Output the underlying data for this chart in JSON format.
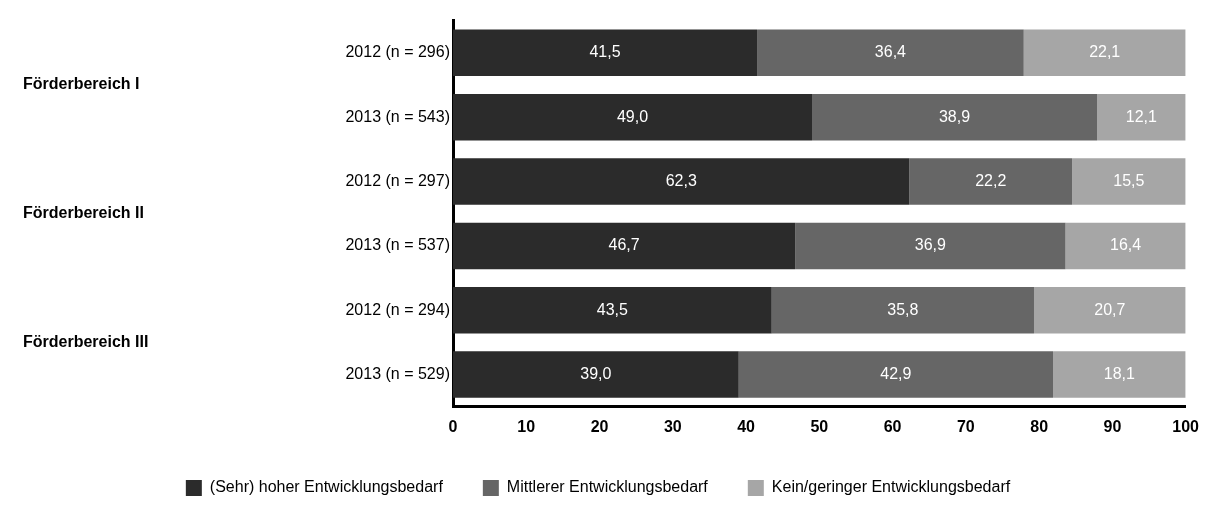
{
  "chart_data": {
    "type": "bar",
    "orientation": "horizontal",
    "stacked": true,
    "categories": [
      "2012 (n = 296)",
      "2013 (n = 543)",
      "2012 (n = 297)",
      "2013 (n = 537)",
      "2012 (n = 294)",
      "2013 (n = 529)"
    ],
    "series": [
      {
        "name": "(Sehr) hoher Entwicklungsbedarf",
        "color": "#2b2b2b",
        "values": [
          41.5,
          49.0,
          62.3,
          46.7,
          43.5,
          39.0
        ]
      },
      {
        "name": "Mittlerer Entwicklungsbedarf",
        "color": "#666666",
        "values": [
          36.4,
          38.9,
          22.2,
          36.9,
          35.8,
          42.9
        ]
      },
      {
        "name": "Kein/geringer Entwicklungsbedarf",
        "color": "#a6a6a6",
        "values": [
          22.1,
          12.1,
          15.5,
          16.4,
          20.7,
          18.1
        ]
      }
    ],
    "value_labels": [
      [
        "41,5",
        "49,0",
        "62,3",
        "46,7",
        "43,5",
        "39,0"
      ],
      [
        "36,4",
        "38,9",
        "22,2",
        "36,9",
        "35,8",
        "42,9"
      ],
      [
        "22,1",
        "12,1",
        "15,5",
        "16,4",
        "20,7",
        "18,1"
      ]
    ],
    "annotations": [
      "Förderbereich I",
      "Förderbereich II",
      "Förderbereich III"
    ],
    "xlim": [
      0,
      100
    ],
    "xticks": [
      0,
      10,
      20,
      30,
      40,
      50,
      60,
      70,
      80,
      90,
      100
    ],
    "grid": false,
    "legend": "bottom"
  }
}
